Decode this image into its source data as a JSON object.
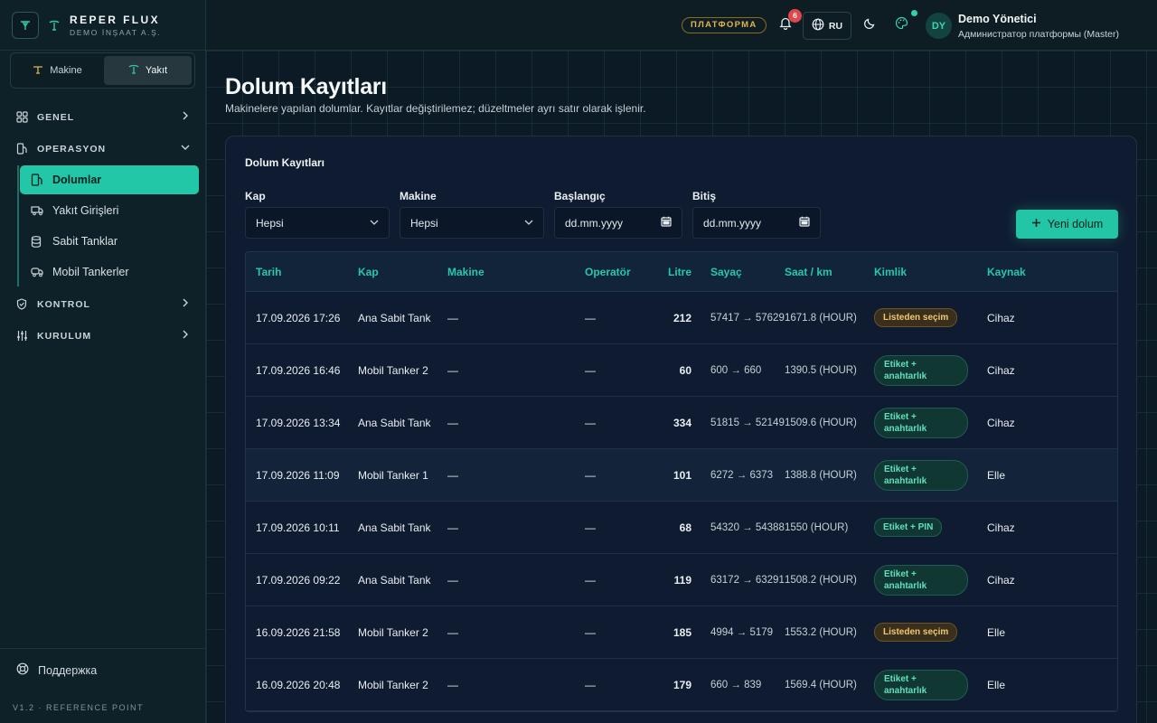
{
  "brand": {
    "name": "REPER FLUX",
    "company": "DEMO İNŞAAT A.Ş."
  },
  "mode_switch": [
    {
      "label": "Makine",
      "active": false
    },
    {
      "label": "Yakıt",
      "active": true
    }
  ],
  "nav": {
    "general": "GENEL",
    "operation": "OPERASYON",
    "operation_items": [
      "Dolumlar",
      "Yakıt Girişleri",
      "Sabit Tanklar",
      "Mobil Tankerler"
    ],
    "control": "KONTROL",
    "setup": "KURULUM"
  },
  "support": "Поддержка",
  "version": "V1.2 · REFERENCE POINT",
  "header": {
    "platform_badge": "ПЛАТФОРМА",
    "notification_count": "6",
    "language": "RU",
    "avatar_initials": "DY",
    "user_name": "Demo Yönetici",
    "user_role": "Администратор платформы (Master)"
  },
  "page": {
    "title": "Dolum Kayıtları",
    "subtitle": "Makinelere yapılan dolumlar. Kayıtlar değiştirilemez; düzeltmeler ayrı satır olarak işlenir."
  },
  "card": {
    "title": "Dolum Kayıtları",
    "filters": {
      "kap": {
        "label": "Kap",
        "value": "Hepsi"
      },
      "makine": {
        "label": "Makine",
        "value": "Hepsi"
      },
      "start": {
        "label": "Başlangıç",
        "value": "dd.mm.yyyy"
      },
      "end": {
        "label": "Bitiş",
        "value": "dd.mm.yyyy"
      }
    },
    "new_button": "Yeni dolum"
  },
  "table": {
    "columns": [
      "Tarih",
      "Kap",
      "Makine",
      "Operatör",
      "Litre",
      "Sayaç",
      "Saat / km",
      "Kimlik",
      "Kaynak"
    ],
    "rows": [
      {
        "date": "17.09.2026 17:26",
        "kap": "Ana Sabit Tank",
        "makine": "—",
        "operator": "—",
        "litre": "212",
        "sayac": "57417 → 57629",
        "saat": "1671.8 (HOUR)",
        "kimlik": "Listeden seçim",
        "kaynak": "Cihaz"
      },
      {
        "date": "17.09.2026 16:46",
        "kap": "Mobil Tanker 2",
        "makine": "—",
        "operator": "—",
        "litre": "60",
        "sayac": "600 → 660",
        "saat": "1390.5 (HOUR)",
        "kimlik": "Etiket + anahtarlık",
        "kaynak": "Cihaz"
      },
      {
        "date": "17.09.2026 13:34",
        "kap": "Ana Sabit Tank",
        "makine": "—",
        "operator": "—",
        "litre": "334",
        "sayac": "51815 → 52149",
        "saat": "1509.6 (HOUR)",
        "kimlik": "Etiket + anahtarlık",
        "kaynak": "Cihaz"
      },
      {
        "date": "17.09.2026 11:09",
        "kap": "Mobil Tanker 1",
        "makine": "—",
        "operator": "—",
        "litre": "101",
        "sayac": "6272 → 6373",
        "saat": "1388.8 (HOUR)",
        "kimlik": "Etiket + anahtarlık",
        "kaynak": "Elle"
      },
      {
        "date": "17.09.2026 10:11",
        "kap": "Ana Sabit Tank",
        "makine": "—",
        "operator": "—",
        "litre": "68",
        "sayac": "54320 → 54388",
        "saat": "1550 (HOUR)",
        "kimlik": "Etiket + PIN",
        "kaynak": "Cihaz"
      },
      {
        "date": "17.09.2026 09:22",
        "kap": "Ana Sabit Tank",
        "makine": "—",
        "operator": "—",
        "litre": "119",
        "sayac": "63172 → 63291",
        "saat": "1508.2 (HOUR)",
        "kimlik": "Etiket + anahtarlık",
        "kaynak": "Cihaz"
      },
      {
        "date": "16.09.2026 21:58",
        "kap": "Mobil Tanker 2",
        "makine": "—",
        "operator": "—",
        "litre": "185",
        "sayac": "4994 → 5179",
        "saat": "1553.2 (HOUR)",
        "kimlik": "Listeden seçim",
        "kaynak": "Elle"
      },
      {
        "date": "16.09.2026 20:48",
        "kap": "Mobil Tanker 2",
        "makine": "—",
        "operator": "—",
        "litre": "179",
        "sayac": "660 → 839",
        "saat": "1569.4 (HOUR)",
        "kimlik": "Etiket + anahtarlık",
        "kaynak": "Elle"
      }
    ]
  },
  "colors": {
    "accent": "#22c5a6",
    "warning_badge": "#f0c870",
    "danger": "#e0474c"
  }
}
